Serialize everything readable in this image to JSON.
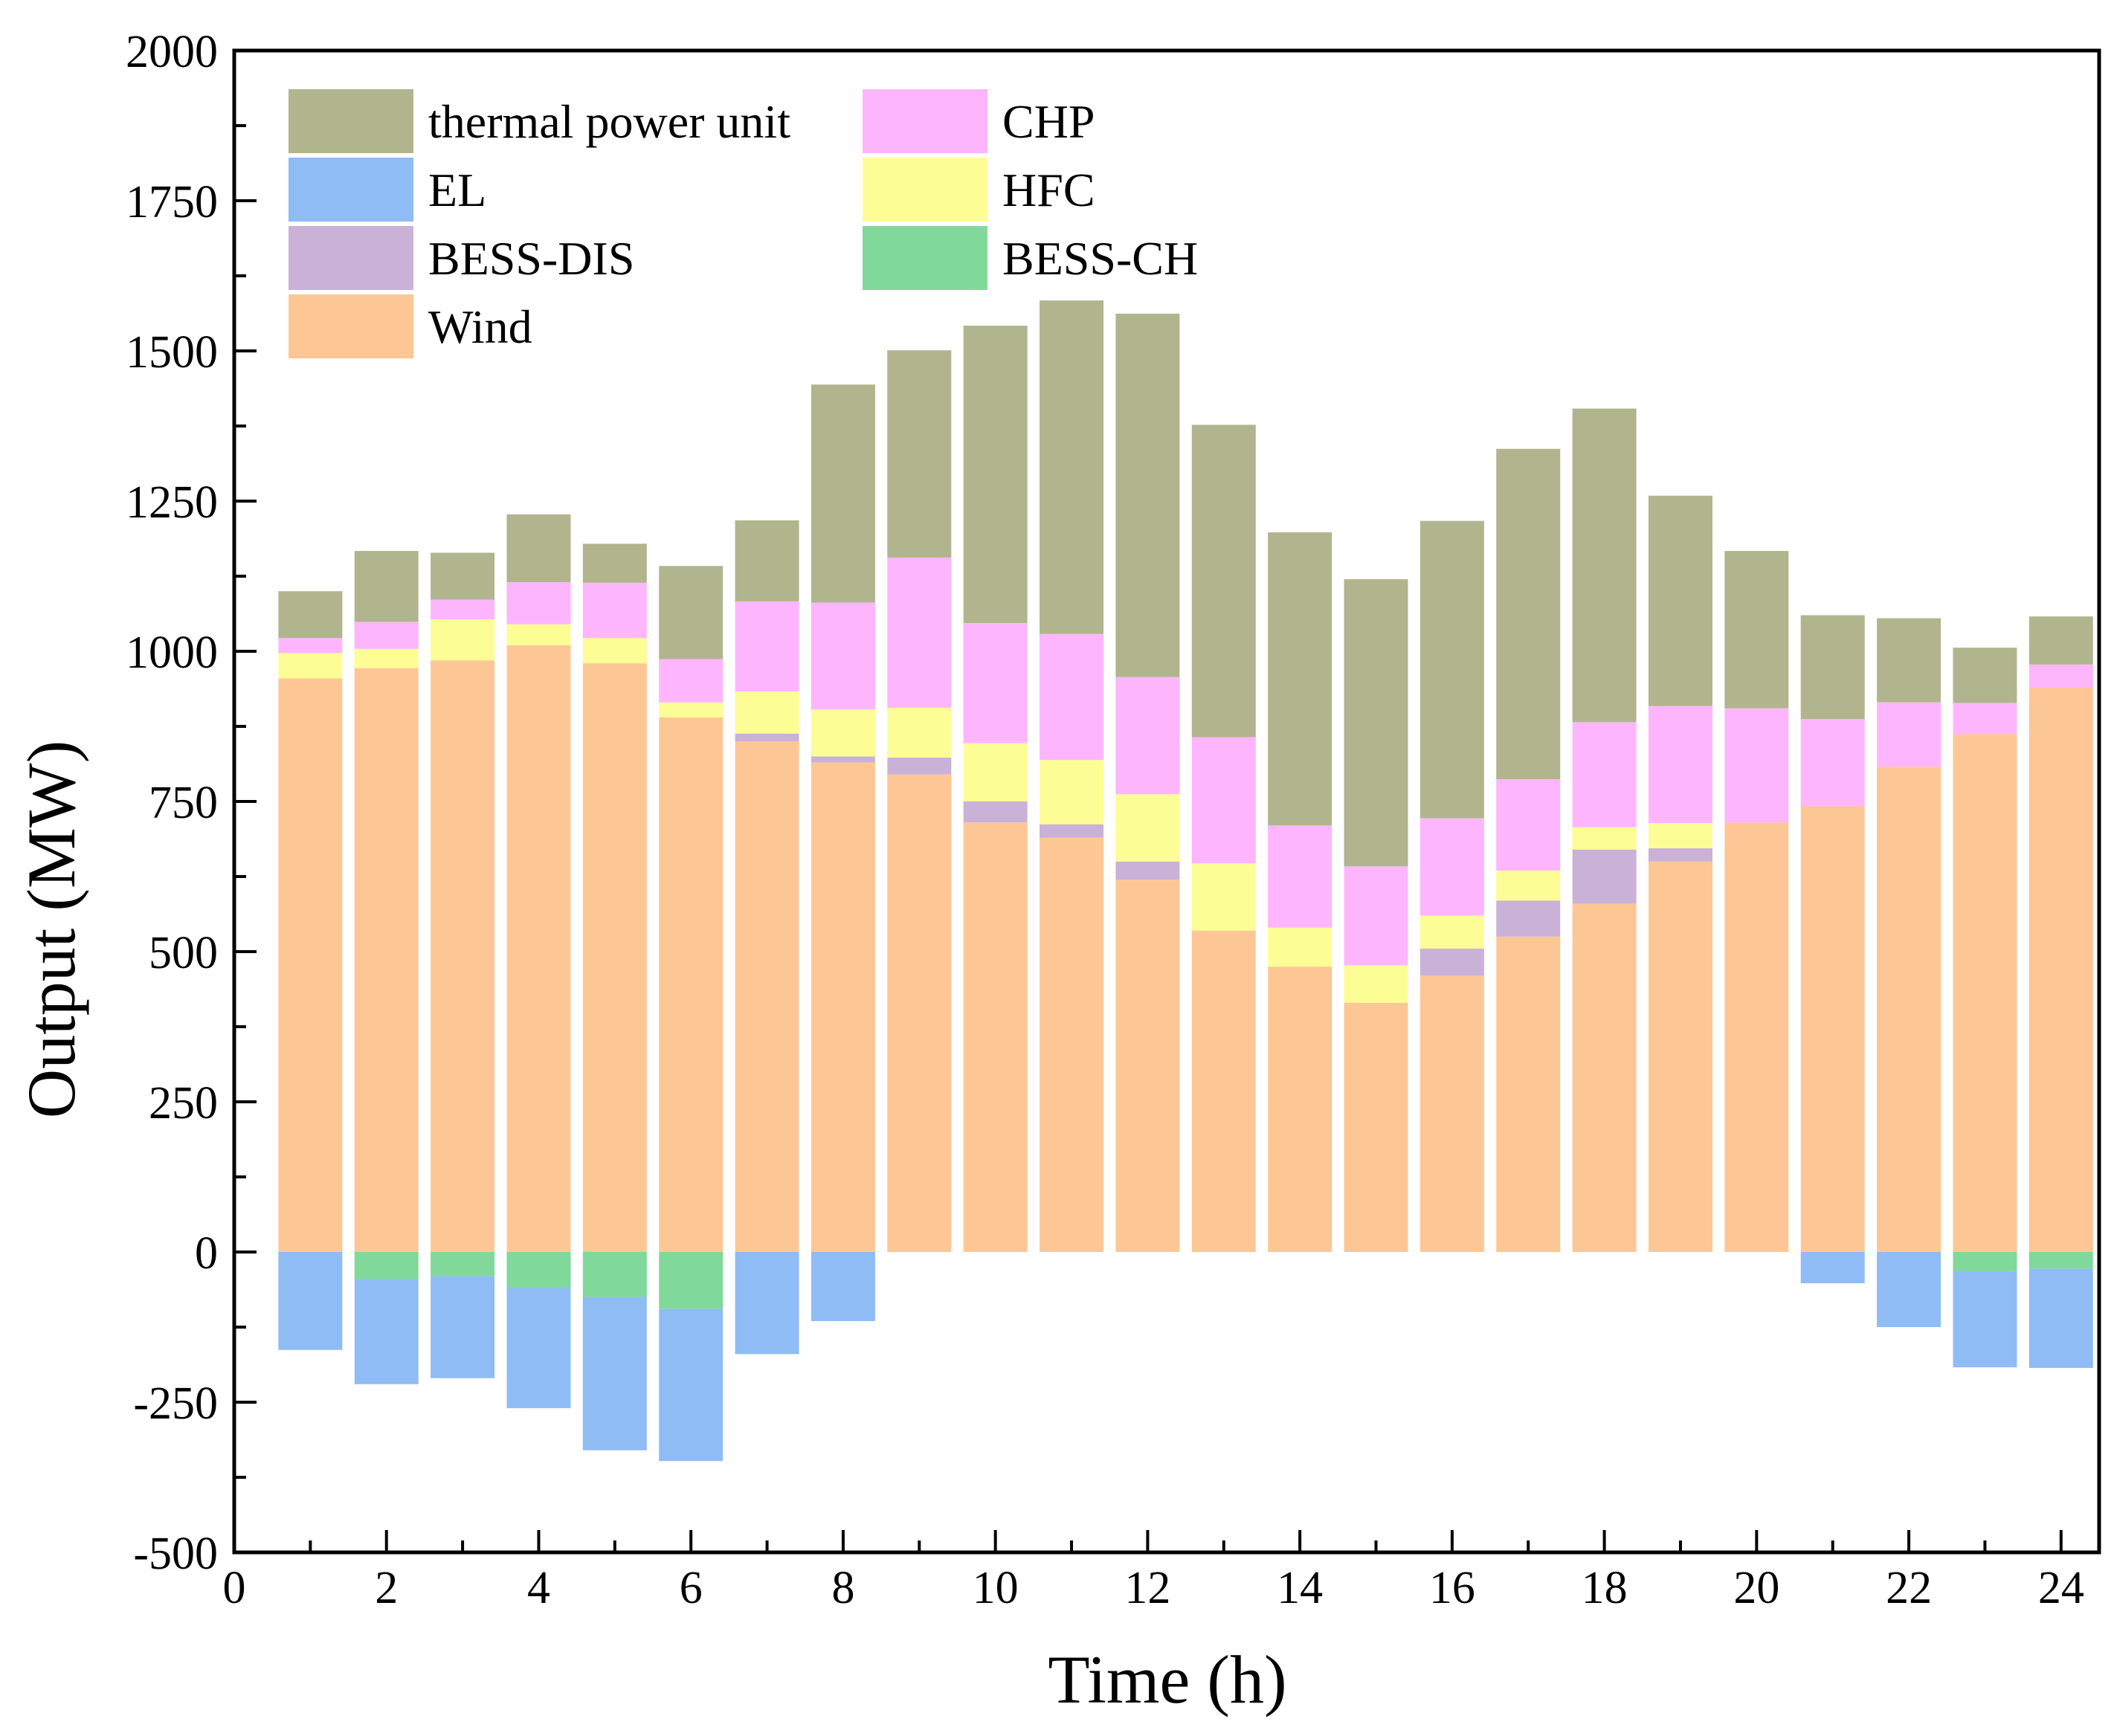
{
  "chart_data": {
    "type": "bar",
    "stacked": true,
    "title": "",
    "xlabel": "Time (h)",
    "ylabel": "Output (MW)",
    "xlim": [
      0,
      24.5
    ],
    "ylim": [
      -500,
      2000
    ],
    "x_ticks": [
      0,
      2,
      4,
      6,
      8,
      10,
      12,
      14,
      16,
      18,
      20,
      22,
      24
    ],
    "y_ticks": [
      -500,
      -250,
      0,
      250,
      500,
      750,
      1000,
      1250,
      1500,
      1750,
      2000
    ],
    "grid": false,
    "legend_position": "top-left",
    "categories": [
      1,
      2,
      3,
      4,
      5,
      6,
      7,
      8,
      9,
      10,
      11,
      12,
      13,
      14,
      15,
      16,
      17,
      18,
      19,
      20,
      21,
      22,
      23,
      24
    ],
    "series": [
      {
        "name": "Wind",
        "color": "#FDC795",
        "values": [
          955,
          972,
          985,
          1010,
          980,
          890,
          850,
          815,
          795,
          715,
          690,
          620,
          535,
          475,
          415,
          460,
          525,
          580,
          650,
          715,
          742,
          808,
          862,
          940
        ]
      },
      {
        "name": "BESS-DIS",
        "color": "#C9B1D8",
        "values": [
          0,
          0,
          0,
          0,
          0,
          0,
          13,
          10,
          28,
          35,
          22,
          30,
          0,
          0,
          0,
          45,
          60,
          90,
          22,
          0,
          0,
          0,
          0,
          0
        ]
      },
      {
        "name": "HFC",
        "color": "#FDFD96",
        "values": [
          42,
          32,
          68,
          35,
          42,
          25,
          70,
          78,
          83,
          97,
          107,
          112,
          112,
          65,
          62,
          55,
          50,
          37,
          42,
          0,
          0,
          0,
          0,
          0
        ]
      },
      {
        "name": "CHP",
        "color": "#FDB6FD",
        "values": [
          25,
          45,
          33,
          70,
          92,
          72,
          150,
          178,
          250,
          200,
          210,
          195,
          210,
          170,
          165,
          162,
          152,
          175,
          195,
          190,
          145,
          107,
          52,
          38
        ]
      },
      {
        "name": "thermal power unit",
        "color": "#B1B58E",
        "values": [
          78,
          118,
          78,
          113,
          65,
          155,
          135,
          363,
          345,
          495,
          555,
          605,
          520,
          488,
          478,
          495,
          550,
          522,
          350,
          262,
          173,
          140,
          92,
          80
        ]
      },
      {
        "name": "BESS-CH",
        "color": "#80D99A",
        "values": [
          0,
          -45,
          -40,
          -60,
          -75,
          -95,
          0,
          0,
          0,
          0,
          0,
          0,
          0,
          0,
          0,
          0,
          0,
          0,
          0,
          0,
          0,
          0,
          -32,
          -28
        ]
      },
      {
        "name": "EL",
        "color": "#8FBCF5",
        "values": [
          -163,
          -175,
          -170,
          -200,
          -255,
          -253,
          -170,
          -115,
          0,
          0,
          0,
          0,
          0,
          0,
          0,
          0,
          0,
          0,
          0,
          0,
          -52,
          -125,
          -160,
          -165
        ]
      }
    ],
    "legend_order": [
      "thermal power unit",
      "CHP",
      "EL",
      "HFC",
      "BESS-DIS",
      "BESS-CH",
      "Wind"
    ],
    "legend_labels": {
      "thermal power unit": "thermal power unit",
      "CHP": "CHP",
      "EL": "EL",
      "HFC": "HFC",
      "BESS-DIS": "BESS-DIS",
      "BESS-CH": "BESS-CH",
      "Wind": "Wind"
    }
  }
}
